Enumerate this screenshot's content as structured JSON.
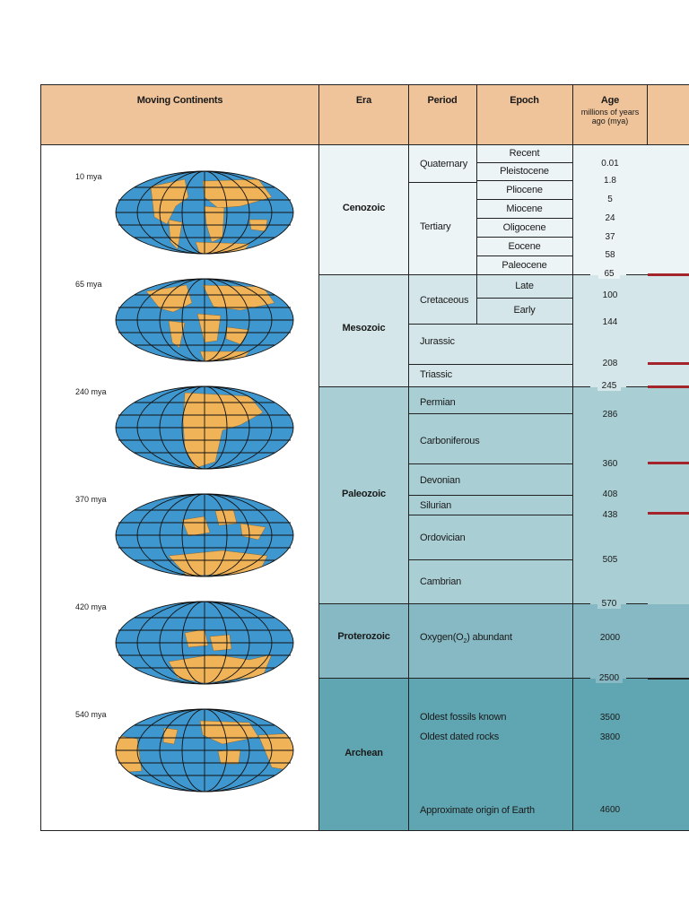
{
  "header": {
    "moving_continents": "Moving Continents",
    "era": "Era",
    "period": "Period",
    "epoch": "Epoch",
    "age": "Age",
    "age_sub1": "millions of years",
    "age_sub2": "ago (mya)"
  },
  "globes": [
    {
      "label": "10 mya"
    },
    {
      "label": "65 mya"
    },
    {
      "label": "240 mya"
    },
    {
      "label": "370 mya"
    },
    {
      "label": "420 mya"
    },
    {
      "label": "540 mya"
    }
  ],
  "eras": {
    "cenozoic": "Cenozoic",
    "mesozoic": "Mesozoic",
    "paleozoic": "Paleozoic",
    "proterozoic": "Proterozoic",
    "archean": "Archean"
  },
  "periods": {
    "quaternary": "Quaternary",
    "tertiary": "Tertiary",
    "cretaceous": "Cretaceous",
    "jurassic": "Jurassic",
    "triassic": "Triassic",
    "permian": "Permian",
    "carboniferous": "Carboniferous",
    "devonian": "Devonian",
    "silurian": "Silurian",
    "ordovician": "Ordovician",
    "cambrian": "Cambrian",
    "oxygen_prefix": "Oxygen(O",
    "oxygen_sub": "2",
    "oxygen_suffix": ") abundant",
    "oldest_fossils": "Oldest fossils known",
    "oldest_rocks": "Oldest dated rocks",
    "origin": "Approximate origin of Earth"
  },
  "epochs": {
    "recent": "Recent",
    "pleistocene": "Pleistocene",
    "pliocene": "Pliocene",
    "miocene": "Miocene",
    "oligocene": "Oligocene",
    "eocene": "Eocene",
    "paleocene": "Paleocene",
    "late": "Late",
    "early": "Early"
  },
  "ages": [
    "0.01",
    "1.8",
    "5",
    "24",
    "37",
    "58",
    "65",
    "100",
    "144",
    "208",
    "245",
    "286",
    "360",
    "408",
    "438",
    "505",
    "570",
    "2000",
    "2500",
    "3500",
    "3800",
    "4600"
  ],
  "colors": {
    "header": "#f0c49a",
    "cenozoic": "#edf4f6",
    "mesozoic": "#d4e6ea",
    "paleozoic": "#a9cfd5",
    "proterozoic": "#86b9c3",
    "archean": "#60a6b2",
    "ocean": "#3f97cf",
    "land": "#f0b358",
    "boundary_red": "#a3242a"
  }
}
